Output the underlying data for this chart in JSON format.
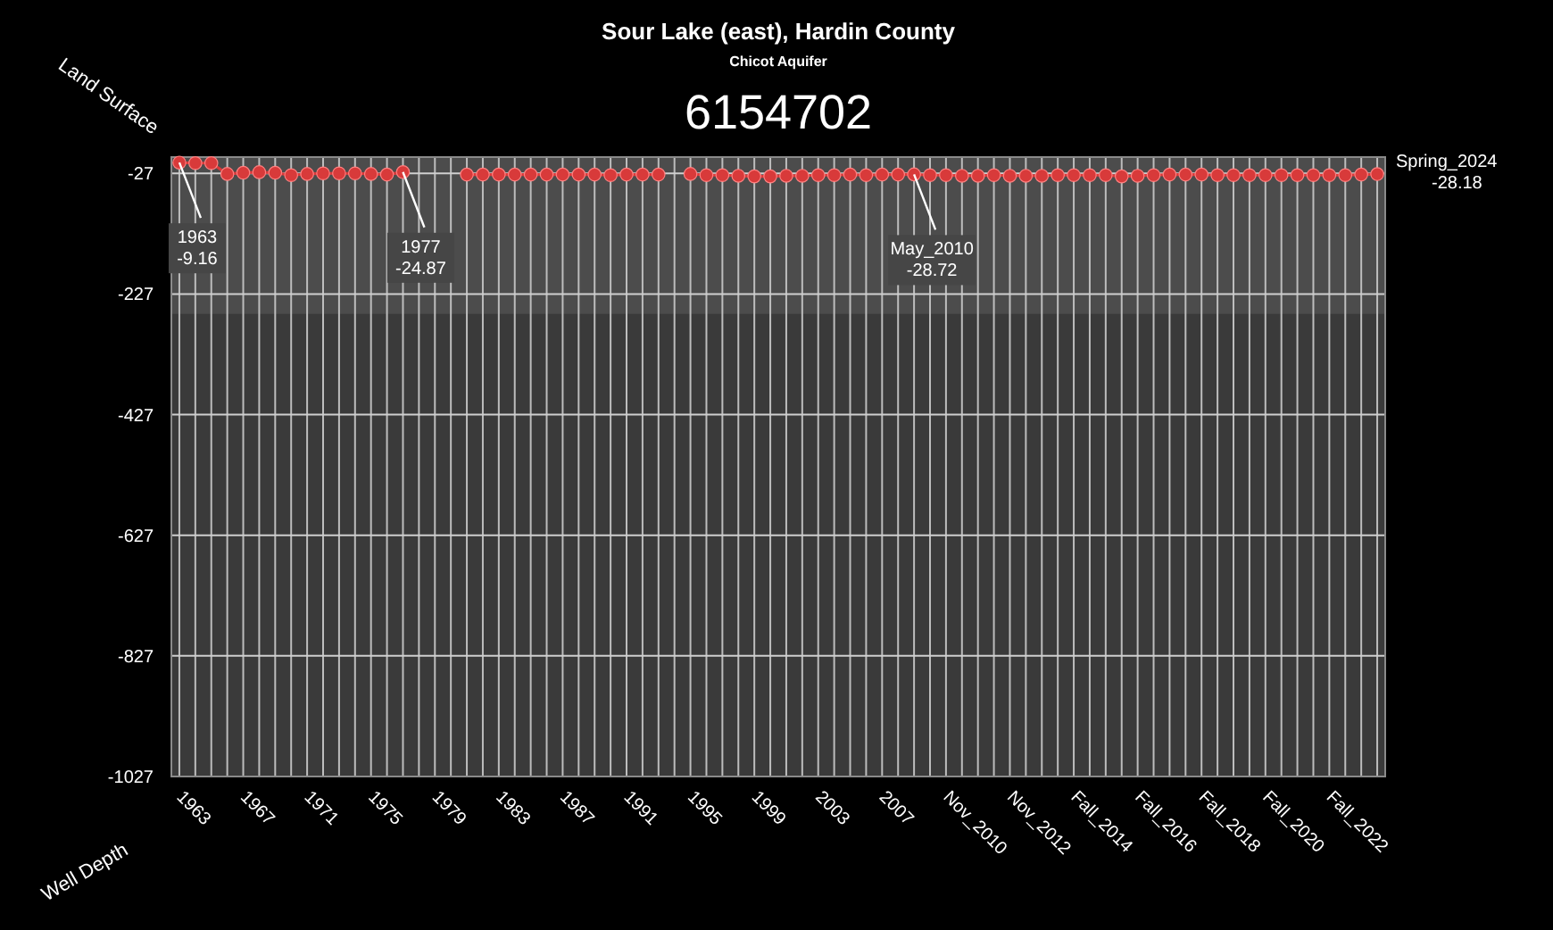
{
  "chart_data": {
    "type": "line",
    "title": "Sour Lake (east), Hardin County",
    "subtitle": "Chicot Aquifer",
    "categories": [
      "1963",
      null,
      null,
      null,
      "1967",
      null,
      null,
      null,
      "1971",
      null,
      null,
      null,
      "1975",
      null,
      null,
      null,
      "1979",
      null,
      null,
      null,
      "1983",
      null,
      null,
      null,
      "1987",
      null,
      null,
      null,
      "1991",
      null,
      null,
      null,
      "1995",
      null,
      null,
      null,
      "1999",
      null,
      null,
      null,
      "2003",
      null,
      null,
      null,
      "2007",
      null,
      null,
      null,
      "Nov_2010",
      null,
      null,
      null,
      "Nov_2012",
      null,
      null,
      null,
      "Fall_2014",
      null,
      null,
      null,
      "Fall_2016",
      null,
      null,
      null,
      "Fall_2018",
      null,
      null,
      null,
      "Fall_2020",
      null,
      null,
      null,
      "Fall_2022",
      null,
      null,
      null
    ],
    "series": [
      {
        "color": "#d83a3a",
        "values": [
          -9.16,
          -10,
          -10,
          -28,
          -26,
          -25,
          -26,
          -30,
          -28,
          -27,
          -27,
          -27,
          -28,
          -29,
          -24.87,
          null,
          null,
          null,
          -29,
          -29,
          -29,
          -29,
          -29,
          -29,
          -29,
          -29,
          -29,
          -30,
          -29,
          -29,
          -29,
          null,
          -28,
          -30,
          -30,
          -31,
          -32,
          -32,
          -31,
          -31,
          -30,
          -30,
          -29,
          -30,
          -29,
          -29,
          -28.72,
          -30,
          -30,
          -31,
          -31,
          -30,
          -31,
          -31,
          -31,
          -30,
          -30,
          -30,
          -30,
          -32,
          -31,
          -30,
          -29,
          -29,
          -29,
          -30,
          -30,
          -30,
          -30,
          -30,
          -30,
          -30,
          -30,
          -30,
          -29,
          -28.18
        ]
      }
    ],
    "ylim": [
      -1027,
      0
    ],
    "yticks": [
      -27,
      -227,
      -427,
      -627,
      -827,
      -1027
    ],
    "grid": true,
    "marker": "circle",
    "line_style": "solid",
    "bands": [
      {
        "axis": "y",
        "from": -260,
        "to": 0,
        "color": "#4c4c4c"
      }
    ],
    "annotations": [
      {
        "text": "1963\n-9.16",
        "x": "1963",
        "y": -9.16
      },
      "1977\n-24.87",
      "May_2010\n-28.72",
      "Spring_2024\n-28.18",
      "6154702",
      "Land Surface",
      "Well Depth"
    ]
  }
}
